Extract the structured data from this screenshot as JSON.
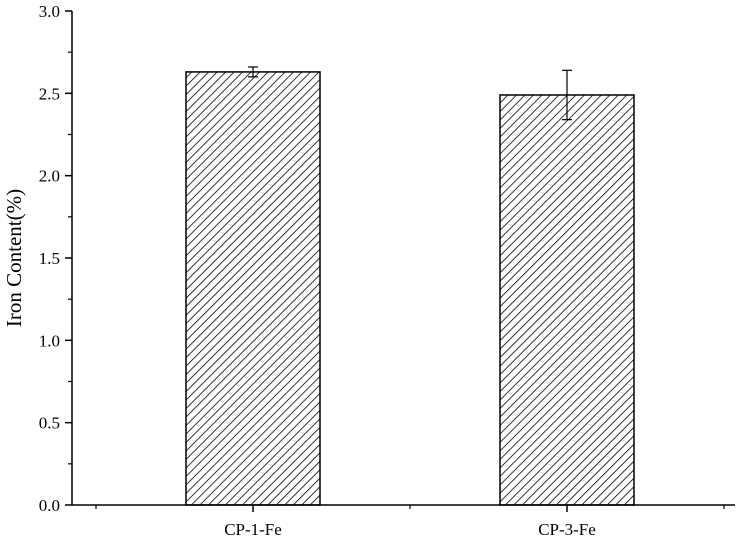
{
  "chart_data": {
    "type": "bar",
    "title": "",
    "xlabel": "",
    "ylabel": "Iron Content(%)",
    "categories": [
      "CP-1-Fe",
      "CP-3-Fe"
    ],
    "values": [
      2.63,
      2.49
    ],
    "error": [
      0.03,
      0.15
    ],
    "ylim": [
      0,
      3.0
    ],
    "yticks": [
      "0.0",
      "0.5",
      "1.0",
      "1.5",
      "2.0",
      "2.5",
      "3.0"
    ],
    "ytick_values": [
      0,
      0.5,
      1.0,
      1.5,
      2.0,
      2.5,
      3.0
    ],
    "bar_fill": "hatched diagonal lines",
    "bar_color": "#000000",
    "grid": false,
    "legend": "none"
  }
}
